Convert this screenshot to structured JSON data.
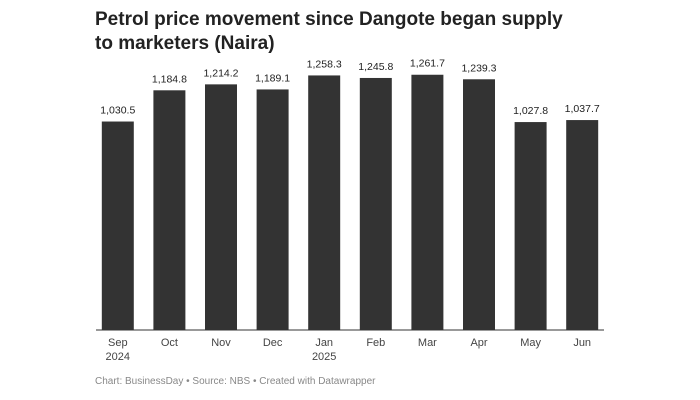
{
  "chart_data": {
    "type": "bar",
    "title": "Petrol price movement since Dangote began supply to marketers (Naira)",
    "categories": [
      "Sep 2024",
      "Oct",
      "Nov",
      "Dec",
      "Jan 2025",
      "Feb",
      "Mar",
      "Apr",
      "May",
      "Jun"
    ],
    "values": [
      1030.5,
      1184.8,
      1214.2,
      1189.1,
      1258.3,
      1245.8,
      1261.7,
      1239.3,
      1027.8,
      1037.7
    ],
    "value_labels": [
      "1,030.5",
      "1,184.8",
      "1,214.2",
      "1,189.1",
      "1,258.3",
      "1,245.8",
      "1,261.7",
      "1,239.3",
      "1,027.8",
      "1,037.7"
    ],
    "color": "#333333",
    "ylim": [
      0,
      1300
    ],
    "footer": "Chart: BusinessDay • Source: NBS • Created with Datawrapper"
  }
}
